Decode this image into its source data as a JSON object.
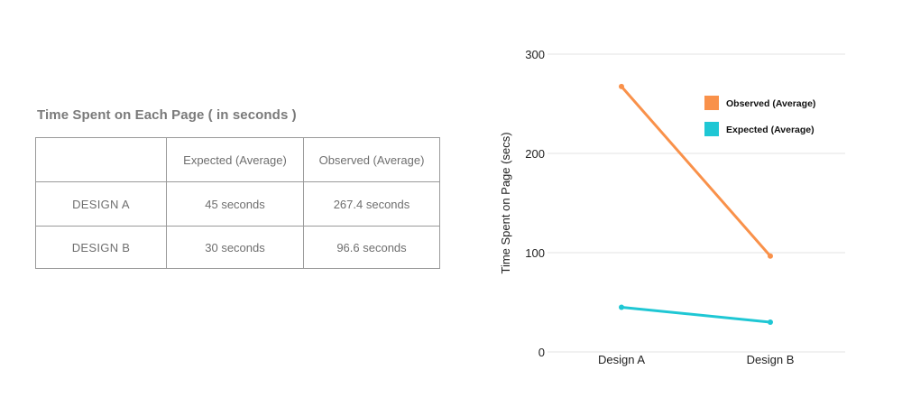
{
  "table": {
    "title": "Time Spent on Each Page ( in seconds )",
    "header": [
      "",
      "Expected (Average)",
      "Observed (Average)"
    ],
    "rows": [
      [
        "DESIGN A",
        "45 seconds",
        "267.4 seconds"
      ],
      [
        "DESIGN B",
        "30 seconds",
        "96.6 seconds"
      ]
    ]
  },
  "chart_data": {
    "type": "line",
    "categories": [
      "Design A",
      "Design B"
    ],
    "series": [
      {
        "name": "Observed (Average)",
        "values": [
          267.4,
          96.6
        ],
        "color": "#f9914a"
      },
      {
        "name": "Expected (Average)",
        "values": [
          45,
          30
        ],
        "color": "#1fc7d4"
      }
    ],
    "ylabel": "Time Spent on Page (secs)",
    "xlabel": "",
    "ylim": [
      0,
      300
    ],
    "yticks": [
      0,
      100,
      200,
      300
    ],
    "grid": true,
    "legend_position": "top-right"
  }
}
